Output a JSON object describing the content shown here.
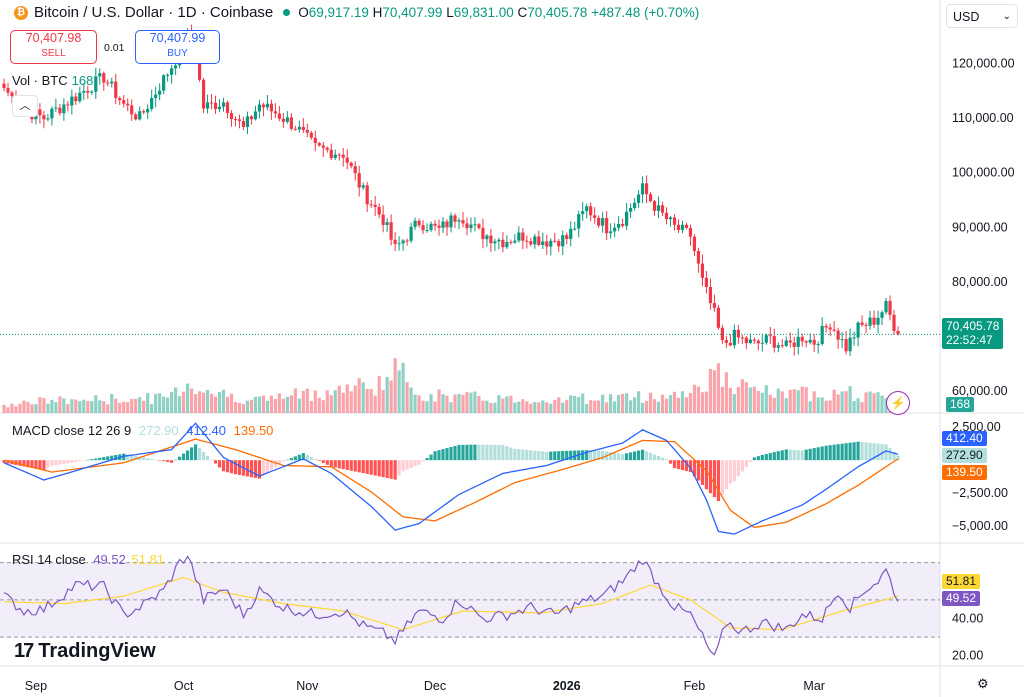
{
  "header": {
    "symbol_icon": "bitcoin-icon",
    "title": "Bitcoin / U.S. Dollar · 1D · Coinbase",
    "o_label": "O",
    "o": "69,917.19",
    "h_label": "H",
    "h": "70,407.99",
    "l_label": "L",
    "l": "69,831.00",
    "c_label": "C",
    "c": "70,405.78",
    "change": "+487.48 (+0.70%)"
  },
  "trade": {
    "sell_price": "70,407.98",
    "sell_label": "SELL",
    "spread": "0.01",
    "buy_price": "70,407.99",
    "buy_label": "BUY"
  },
  "currency": "USD",
  "volume_label": "Vol · BTC",
  "volume_value": "168",
  "macd_label": {
    "name": "MACD close 12 26 9",
    "v1": "272.90",
    "v2": "412.40",
    "v3": "139.50"
  },
  "rsi_label": {
    "name": "RSI 14 close",
    "v1": "49.52",
    "v2": "51.81"
  },
  "price_tag": {
    "value": "70,405.78",
    "countdown": "22:52:47"
  },
  "volume_tag": "168",
  "macd_tags": {
    "macd": "412.40",
    "hist": "272.90",
    "signal": "139.50"
  },
  "rsi_tags": {
    "rsi": "51.81",
    "ma": "49.52"
  },
  "branding": "TradingView",
  "colors": {
    "up": "#089981",
    "down": "#f23645",
    "macd": "#2962ff",
    "signal": "#ff6d00",
    "rsi": "#7e57c2",
    "rsi_ma": "#fdd835"
  },
  "chart_data": [
    {
      "type": "candlestick",
      "title": "Bitcoin / U.S. Dollar · 1D · Coinbase",
      "x_ticks": [
        "Sep",
        "Oct",
        "Nov",
        "Dec",
        "2026",
        "Feb",
        "Mar"
      ],
      "y_ticks": [
        "120,000.00",
        "110,000.00",
        "100,000.00",
        "90,000.00",
        "80,000.00",
        "60,000.00"
      ],
      "ylim": [
        56000,
        126500
      ],
      "last_close": 70405.78,
      "close_anchors": [
        [
          0,
          115500
        ],
        [
          5,
          111500
        ],
        [
          10,
          110000
        ],
        [
          18,
          114000
        ],
        [
          25,
          117500
        ],
        [
          30,
          112500
        ],
        [
          34,
          110000
        ],
        [
          42,
          119500
        ],
        [
          46,
          124500
        ],
        [
          48,
          121500
        ],
        [
          50,
          112000
        ],
        [
          55,
          113000
        ],
        [
          60,
          108000
        ],
        [
          64,
          112500
        ],
        [
          68,
          111000
        ],
        [
          73,
          108500
        ],
        [
          78,
          104500
        ],
        [
          85,
          103500
        ],
        [
          90,
          96500
        ],
        [
          95,
          91500
        ],
        [
          98,
          86000
        ],
        [
          104,
          91000
        ],
        [
          109,
          89500
        ],
        [
          114,
          92500
        ],
        [
          119,
          89000
        ],
        [
          125,
          87500
        ],
        [
          130,
          88500
        ],
        [
          136,
          87500
        ],
        [
          141,
          88000
        ],
        [
          146,
          93500
        ],
        [
          151,
          90000
        ],
        [
          155,
          91500
        ],
        [
          160,
          97000
        ],
        [
          164,
          93000
        ],
        [
          168,
          90000
        ],
        [
          172,
          88500
        ],
        [
          175,
          80000
        ],
        [
          178,
          74000
        ],
        [
          180,
          68500
        ],
        [
          183,
          70000
        ],
        [
          188,
          68500
        ],
        [
          192,
          69500
        ],
        [
          196,
          68000
        ],
        [
          200,
          70000
        ],
        [
          203,
          69000
        ],
        [
          207,
          72500
        ],
        [
          211,
          68000
        ],
        [
          214,
          71500
        ],
        [
          218,
          73000
        ],
        [
          221,
          75500
        ],
        [
          224,
          70405
        ]
      ],
      "volume_anchors": [
        [
          0,
          0.15
        ],
        [
          10,
          0.2
        ],
        [
          40,
          0.25
        ],
        [
          46,
          0.48
        ],
        [
          55,
          0.3
        ],
        [
          63,
          0.22
        ],
        [
          80,
          0.35
        ],
        [
          95,
          0.5
        ],
        [
          98,
          0.72
        ],
        [
          105,
          0.3
        ],
        [
          130,
          0.22
        ],
        [
          150,
          0.25
        ],
        [
          165,
          0.28
        ],
        [
          172,
          0.35
        ],
        [
          176,
          0.55
        ],
        [
          178,
          0.7
        ],
        [
          182,
          0.45
        ],
        [
          195,
          0.3
        ],
        [
          210,
          0.35
        ],
        [
          224,
          0.2
        ]
      ]
    },
    {
      "type": "line",
      "title": "MACD close 12 26 9",
      "y_ticks": [
        "2,500.00",
        "−2,500.00",
        "−5,000.00"
      ],
      "ylim": [
        -6200,
        3500
      ],
      "series": [
        {
          "name": "MACD",
          "anchors": [
            [
              0,
              -200
            ],
            [
              10,
              -1500
            ],
            [
              18,
              -800
            ],
            [
              30,
              300
            ],
            [
              42,
              800
            ],
            [
              48,
              2800
            ],
            [
              55,
              200
            ],
            [
              64,
              -1200
            ],
            [
              75,
              100
            ],
            [
              82,
              -1000
            ],
            [
              92,
              -3500
            ],
            [
              98,
              -5300
            ],
            [
              104,
              -4800
            ],
            [
              114,
              -2600
            ],
            [
              125,
              -1000
            ],
            [
              136,
              -400
            ],
            [
              146,
              600
            ],
            [
              155,
              1300
            ],
            [
              160,
              2300
            ],
            [
              166,
              1500
            ],
            [
              172,
              -600
            ],
            [
              176,
              -3000
            ],
            [
              179,
              -5400
            ],
            [
              183,
              -5600
            ],
            [
              190,
              -4600
            ],
            [
              200,
              -3400
            ],
            [
              206,
              -2200
            ],
            [
              214,
              -500
            ],
            [
              221,
              700
            ],
            [
              224,
              450
            ]
          ]
        },
        {
          "name": "Signal",
          "anchors": [
            [
              0,
              0
            ],
            [
              12,
              -900
            ],
            [
              30,
              -200
            ],
            [
              48,
              1600
            ],
            [
              58,
              800
            ],
            [
              70,
              -400
            ],
            [
              82,
              -500
            ],
            [
              92,
              -2400
            ],
            [
              100,
              -4300
            ],
            [
              108,
              -4600
            ],
            [
              118,
              -3200
            ],
            [
              128,
              -1700
            ],
            [
              140,
              -700
            ],
            [
              150,
              200
            ],
            [
              160,
              1500
            ],
            [
              168,
              1400
            ],
            [
              176,
              -800
            ],
            [
              182,
              -3800
            ],
            [
              188,
              -5100
            ],
            [
              196,
              -4700
            ],
            [
              206,
              -3300
            ],
            [
              214,
              -1900
            ],
            [
              224,
              100
            ]
          ]
        }
      ]
    },
    {
      "type": "line",
      "title": "RSI 14 close",
      "y_ticks": [
        "40.00",
        "20.00"
      ],
      "ylim": [
        15,
        80
      ],
      "series": [
        {
          "name": "RSI",
          "anchors": [
            [
              0,
              52
            ],
            [
              5,
              44
            ],
            [
              10,
              45
            ],
            [
              18,
              58
            ],
            [
              25,
              57
            ],
            [
              30,
              42
            ],
            [
              34,
              46
            ],
            [
              40,
              55
            ],
            [
              44,
              70
            ],
            [
              46,
              74
            ],
            [
              50,
              50
            ],
            [
              55,
              56
            ],
            [
              60,
              42
            ],
            [
              64,
              55
            ],
            [
              70,
              46
            ],
            [
              78,
              42
            ],
            [
              85,
              44
            ],
            [
              90,
              36
            ],
            [
              95,
              32
            ],
            [
              98,
              28
            ],
            [
              104,
              44
            ],
            [
              110,
              40
            ],
            [
              114,
              50
            ],
            [
              120,
              40
            ],
            [
              126,
              42
            ],
            [
              132,
              46
            ],
            [
              138,
              42
            ],
            [
              144,
              48
            ],
            [
              150,
              52
            ],
            [
              155,
              60
            ],
            [
              160,
              72
            ],
            [
              164,
              58
            ],
            [
              168,
              46
            ],
            [
              172,
              42
            ],
            [
              175,
              30
            ],
            [
              178,
              18
            ],
            [
              181,
              38
            ],
            [
              185,
              33
            ],
            [
              190,
              38
            ],
            [
              196,
              34
            ],
            [
              200,
              42
            ],
            [
              205,
              40
            ],
            [
              209,
              55
            ],
            [
              212,
              46
            ],
            [
              216,
              56
            ],
            [
              219,
              60
            ],
            [
              221,
              66
            ],
            [
              224,
              50
            ]
          ]
        },
        {
          "name": "RSI MA",
          "anchors": [
            [
              0,
              49
            ],
            [
              15,
              48
            ],
            [
              30,
              52
            ],
            [
              45,
              62
            ],
            [
              55,
              54
            ],
            [
              70,
              48
            ],
            [
              85,
              44
            ],
            [
              100,
              34
            ],
            [
              115,
              44
            ],
            [
              135,
              43
            ],
            [
              150,
              48
            ],
            [
              162,
              58
            ],
            [
              172,
              50
            ],
            [
              182,
              35
            ],
            [
              195,
              34
            ],
            [
              210,
              44
            ],
            [
              224,
              52
            ]
          ]
        }
      ],
      "bands": [
        70,
        30
      ]
    }
  ]
}
